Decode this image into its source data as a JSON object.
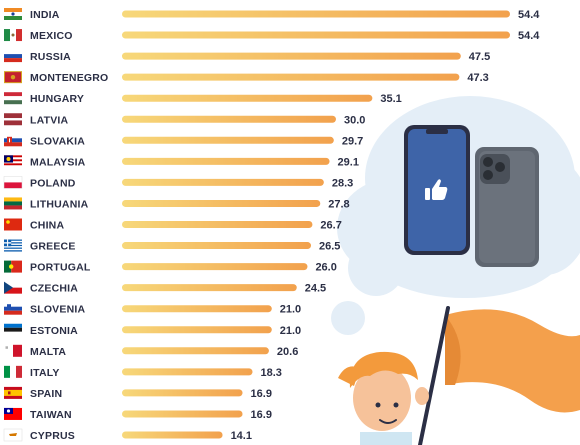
{
  "chart_data": {
    "type": "bar",
    "orientation": "horizontal",
    "title": "",
    "xlabel": "",
    "ylabel": "",
    "xlim": [
      0,
      60
    ],
    "grid": false,
    "legend": "none",
    "categories": [
      "INDIA",
      "MEXICO",
      "RUSSIA",
      "MONTENEGRO",
      "HUNGARY",
      "LATVIA",
      "SLOVAKIA",
      "MALAYSIA",
      "POLAND",
      "LITHUANIA",
      "CHINA",
      "GREECE",
      "PORTUGAL",
      "CZECHIA",
      "SLOVENIA",
      "ESTONIA",
      "MALTA",
      "ITALY",
      "SPAIN",
      "TAIWAN",
      "CYPRUS"
    ],
    "values": [
      54.4,
      54.4,
      47.5,
      47.3,
      35.1,
      30.0,
      29.7,
      29.1,
      28.3,
      27.8,
      26.7,
      26.5,
      26.0,
      24.5,
      21.0,
      21.0,
      20.6,
      18.3,
      16.9,
      16.9,
      14.1
    ],
    "value_labels": [
      "54.4",
      "54.4",
      "47.5",
      "47.3",
      "35.1",
      "30.0",
      "29.7",
      "29.1",
      "28.3",
      "27.8",
      "26.7",
      "26.5",
      "26.0",
      "24.5",
      "21.0",
      "21.0",
      "20.6",
      "18.3",
      "16.9",
      "16.9",
      "14.1"
    ],
    "flag_icons": [
      "flag-india-icon",
      "flag-mexico-icon",
      "flag-russia-icon",
      "flag-montenegro-icon",
      "flag-hungary-icon",
      "flag-latvia-icon",
      "flag-slovakia-icon",
      "flag-malaysia-icon",
      "flag-poland-icon",
      "flag-lithuania-icon",
      "flag-china-icon",
      "flag-greece-icon",
      "flag-portugal-icon",
      "flag-czechia-icon",
      "flag-slovenia-icon",
      "flag-estonia-icon",
      "flag-malta-icon",
      "flag-italy-icon",
      "flag-spain-icon",
      "flag-taiwan-icon",
      "flag-cyprus-icon"
    ]
  },
  "colors": {
    "bar_start": "#f7d87a",
    "bar_end": "#f2a14d",
    "label_text": "#2b2f45",
    "cloud": "#e4eef7",
    "accent_orange": "#f4a04c",
    "phone_blue": "#3e64a8",
    "phone_gray": "#5f6670"
  },
  "illustration": {
    "icons": [
      "cloud-icon",
      "facebook-phone-icon",
      "thumbs-up-icon",
      "smartphone-back-icon",
      "character-icon",
      "orange-flag-icon"
    ]
  }
}
